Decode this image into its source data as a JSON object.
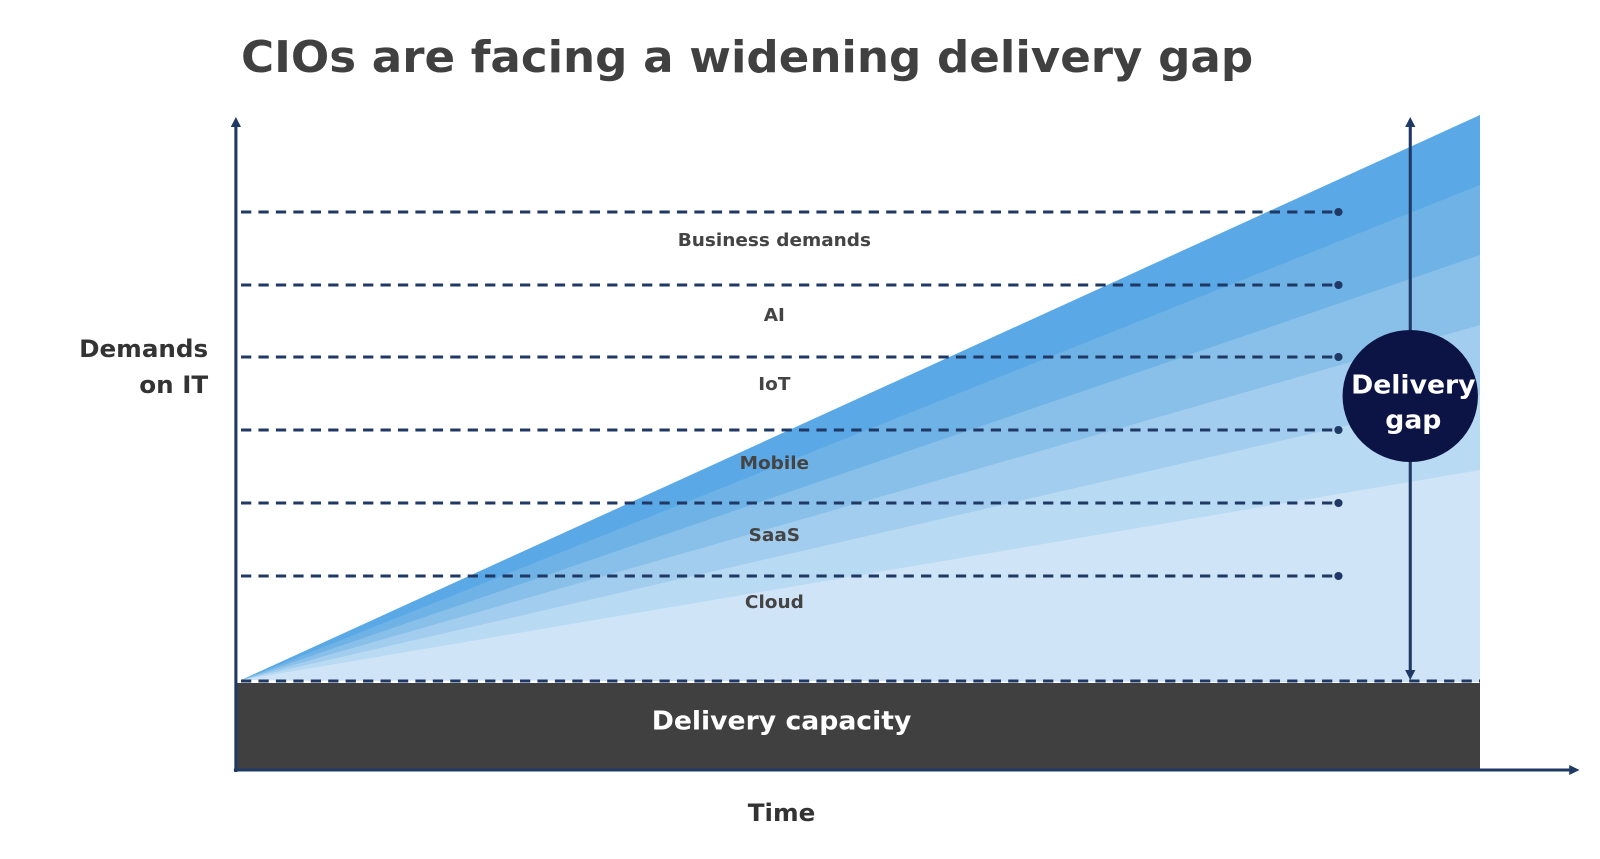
{
  "title": "CIOs are facing a widening delivery gap",
  "y_axis_label": [
    "Demands",
    "on IT"
  ],
  "x_axis_label": "Time",
  "layers": [
    "Business demands",
    "AI",
    "IoT",
    "Mobile",
    "SaaS",
    "Cloud"
  ],
  "delivery_capacity": "Delivery capacity",
  "delivery_gap": [
    "Delivery",
    "gap"
  ]
}
